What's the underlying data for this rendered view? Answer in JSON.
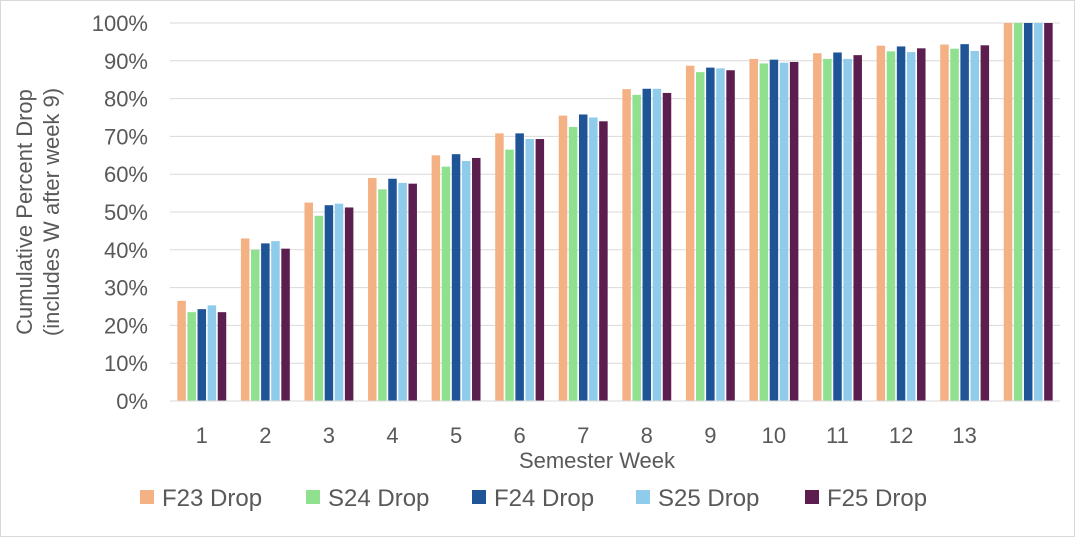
{
  "chart_data": {
    "type": "bar",
    "title": "",
    "xlabel": "Semester Week",
    "ylabel_lines": [
      "Cumulative Percent Drop",
      "(includes W after week 9)"
    ],
    "ylim": [
      0,
      100
    ],
    "yticks": [
      0,
      10,
      20,
      30,
      40,
      50,
      60,
      70,
      80,
      90,
      100
    ],
    "ytick_labels": [
      "0%",
      "10%",
      "20%",
      "30%",
      "40%",
      "50%",
      "60%",
      "70%",
      "80%",
      "90%",
      "100%"
    ],
    "categories": [
      "1",
      "2",
      "3",
      "4",
      "5",
      "6",
      "7",
      "8",
      "9",
      "10",
      "11",
      "12",
      "13",
      ""
    ],
    "grid": true,
    "legend_position": "bottom",
    "series": [
      {
        "name": "F23 Drop",
        "color": "#f4b183",
        "values": [
          26.5,
          43,
          52.5,
          59,
          65,
          70.8,
          75.5,
          82.5,
          88.7,
          90.5,
          92,
          94,
          94.3,
          100
        ]
      },
      {
        "name": "S24 Drop",
        "color": "#8fe08f",
        "values": [
          23.5,
          40,
          49,
          56,
          62,
          66.5,
          72.5,
          81,
          87,
          89.3,
          90.5,
          92.5,
          93.2,
          100
        ]
      },
      {
        "name": "F24 Drop",
        "color": "#1f5597",
        "values": [
          24.3,
          41.7,
          51.8,
          58.8,
          65.3,
          70.8,
          75.8,
          82.6,
          88.2,
          90.3,
          92.2,
          93.8,
          94.4,
          100
        ]
      },
      {
        "name": "S25 Drop",
        "color": "#8fcbea",
        "values": [
          25.3,
          42.3,
          52.2,
          57.7,
          63.5,
          69.3,
          75,
          82.6,
          88,
          89.5,
          90.5,
          92.3,
          92.6,
          100
        ]
      },
      {
        "name": "F25 Drop",
        "color": "#5c1e4f",
        "values": [
          23.5,
          40.3,
          51.2,
          57.5,
          64.3,
          69.3,
          74,
          81.5,
          87.5,
          89.7,
          91.5,
          93.3,
          94.1,
          100
        ]
      }
    ]
  }
}
